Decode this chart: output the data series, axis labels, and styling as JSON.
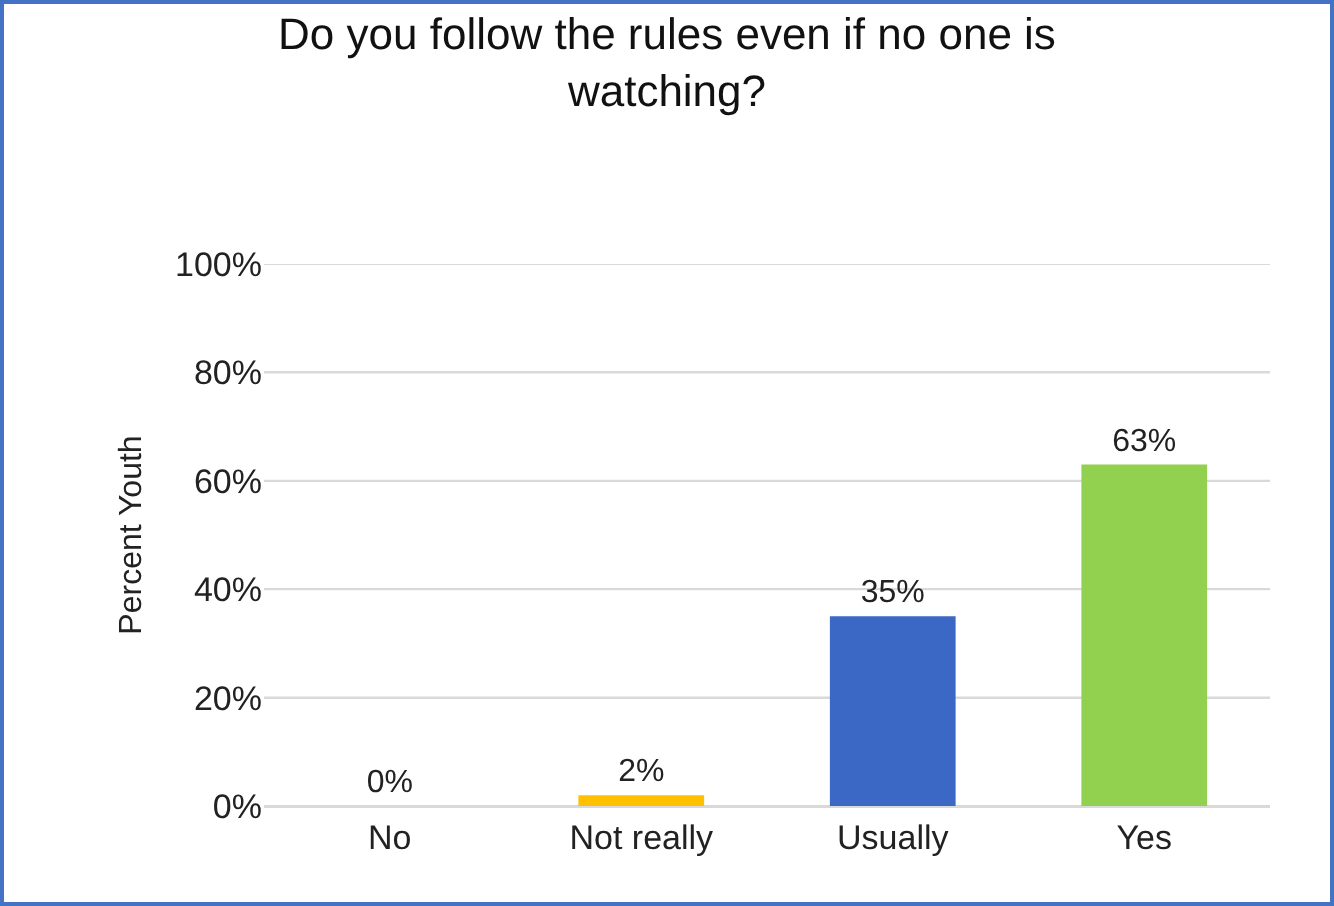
{
  "chart_data": {
    "type": "bar",
    "title": "Do you follow the rules even if no one is watching?",
    "ylabel": "Percent Youth",
    "categories": [
      "No",
      "Not really",
      "Usually",
      "Yes"
    ],
    "values": [
      0,
      2,
      35,
      63
    ],
    "colors": [
      "#ed7d31",
      "#ffc000",
      "#3a68c4",
      "#92d050"
    ],
    "value_labels": [
      "0%",
      "2%",
      "35%",
      "63%"
    ],
    "ylim": [
      0,
      100
    ],
    "yticks": [
      {
        "value": 0,
        "label": "0%"
      },
      {
        "value": 20,
        "label": "20%"
      },
      {
        "value": 40,
        "label": "40%"
      },
      {
        "value": 60,
        "label": "60%"
      },
      {
        "value": 80,
        "label": "80%"
      },
      {
        "value": 100,
        "label": "100%"
      }
    ],
    "grid": "y"
  }
}
